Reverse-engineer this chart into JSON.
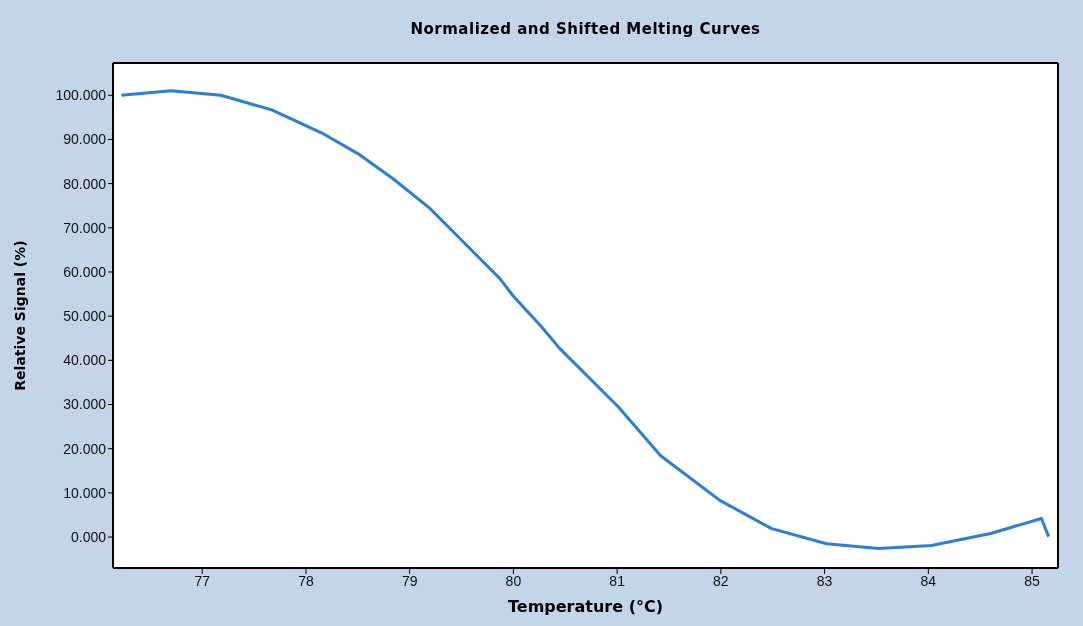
{
  "chart_data": {
    "type": "line",
    "title": "Normalized and Shifted Melting Curves",
    "xlabel": "Temperature (°C)",
    "ylabel": "Relative Signal (%)",
    "x": [
      76.22,
      76.7,
      77.18,
      77.67,
      78.15,
      78.5,
      78.84,
      79.19,
      79.53,
      79.87,
      80.0,
      80.26,
      80.45,
      81.01,
      81.42,
      81.99,
      82.49,
      83.02,
      83.52,
      84.03,
      84.6,
      85.09,
      85.16
    ],
    "series": [
      {
        "color": "#2a7fd4",
        "values": [
          100.0,
          101.0,
          100.0,
          96.7,
          91.5,
          86.8,
          81.1,
          74.5,
          66.5,
          58.5,
          54.5,
          47.9,
          42.6,
          29.5,
          18.4,
          8.3,
          1.9,
          -1.5,
          -2.6,
          -1.9,
          0.8,
          4.2,
          0.1
        ]
      }
    ],
    "xlim": [
      76.14,
      85.25
    ],
    "xticks": [
      77,
      78,
      79,
      80,
      81,
      82,
      83,
      84,
      85
    ],
    "ylim": [
      -7,
      107.3
    ],
    "yticks": [
      {
        "value": 0,
        "label": "0.000"
      },
      {
        "value": 10,
        "label": "10.000"
      },
      {
        "value": 20,
        "label": "20.000"
      },
      {
        "value": 30,
        "label": "30.000"
      },
      {
        "value": 40,
        "label": "40.000"
      },
      {
        "value": 50,
        "label": "50.000"
      },
      {
        "value": 60,
        "label": "60.000"
      },
      {
        "value": 70,
        "label": "70.000"
      },
      {
        "value": 80,
        "label": "80.000"
      },
      {
        "value": 90,
        "label": "90.000"
      },
      {
        "value": 100,
        "label": "100.000"
      }
    ],
    "legend": false,
    "marker": "none",
    "line_style": "solid"
  }
}
